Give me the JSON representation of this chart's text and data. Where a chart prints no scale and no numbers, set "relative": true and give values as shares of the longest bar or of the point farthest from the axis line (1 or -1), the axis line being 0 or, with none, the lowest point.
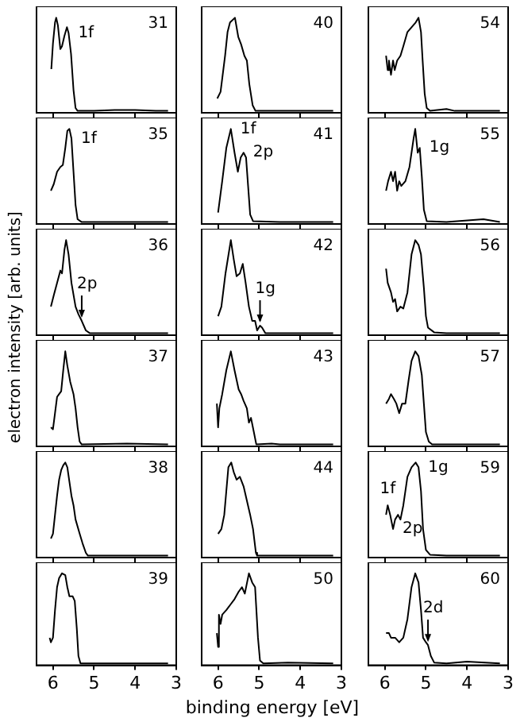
{
  "chart_data": [
    {
      "type": "line",
      "relative": true,
      "xlim": [
        6.4,
        3
      ],
      "xticks": [
        6,
        5,
        4,
        3
      ],
      "tick_labels": false,
      "marker": "none",
      "annotations": [
        "31",
        {
          "text": "1f",
          "x": 5.62,
          "y": 0.84
        }
      ],
      "x": [
        6.04,
        6.0,
        5.95,
        5.92,
        5.88,
        5.82,
        5.78,
        5.72,
        5.66,
        5.62,
        5.56,
        5.5,
        5.45,
        5.4,
        5.0,
        4.5,
        4.0,
        3.5,
        3.2
      ],
      "series": [
        {
          "color": "#000000",
          "values": [
            0.46,
            0.73,
            0.95,
            1.0,
            0.92,
            0.67,
            0.7,
            0.81,
            0.9,
            0.84,
            0.62,
            0.24,
            0.05,
            0.02,
            0.02,
            0.03,
            0.03,
            0.02,
            0.02
          ]
        }
      ]
    },
    {
      "type": "line",
      "relative": true,
      "xlim": [
        6.4,
        3
      ],
      "xticks": [
        6,
        5,
        4,
        3
      ],
      "tick_labels": false,
      "marker": "none",
      "annotations": [
        "40"
      ],
      "x": [
        6.02,
        5.94,
        5.83,
        5.77,
        5.71,
        5.59,
        5.51,
        5.44,
        5.36,
        5.3,
        5.24,
        5.16,
        5.09,
        4.6,
        3.2
      ],
      "series": [
        {
          "color": "#000000",
          "values": [
            0.15,
            0.22,
            0.6,
            0.85,
            0.95,
            1.0,
            0.8,
            0.72,
            0.6,
            0.55,
            0.3,
            0.08,
            0.02,
            0.02,
            0.02
          ]
        }
      ]
    },
    {
      "type": "line",
      "relative": true,
      "xlim": [
        6.4,
        3
      ],
      "xticks": [
        6,
        5,
        4,
        3
      ],
      "tick_labels": false,
      "marker": "none",
      "annotations": [
        "54"
      ],
      "x": [
        5.97,
        5.93,
        5.9,
        5.85,
        5.8,
        5.76,
        5.7,
        5.62,
        5.55,
        5.45,
        5.35,
        5.25,
        5.18,
        5.12,
        5.08,
        5.03,
        4.98,
        4.9,
        4.5,
        4.3,
        3.2
      ],
      "series": [
        {
          "color": "#000000",
          "values": [
            0.6,
            0.45,
            0.55,
            0.4,
            0.55,
            0.45,
            0.55,
            0.6,
            0.7,
            0.85,
            0.9,
            0.95,
            1.0,
            0.85,
            0.55,
            0.2,
            0.05,
            0.02,
            0.04,
            0.02,
            0.02
          ]
        }
      ]
    },
    {
      "type": "line",
      "relative": true,
      "xlim": [
        6.4,
        3
      ],
      "xticks": [
        6,
        5,
        4,
        3
      ],
      "tick_labels": false,
      "marker": "none",
      "annotations": [
        "35",
        {
          "text": "1f",
          "x": 5.55,
          "y": 0.9
        }
      ],
      "x": [
        6.05,
        5.98,
        5.9,
        5.82,
        5.76,
        5.7,
        5.65,
        5.6,
        5.55,
        5.5,
        5.45,
        5.4,
        5.3,
        4.5,
        3.2
      ],
      "series": [
        {
          "color": "#000000",
          "values": [
            0.35,
            0.42,
            0.55,
            0.6,
            0.62,
            0.8,
            0.98,
            1.0,
            0.9,
            0.55,
            0.2,
            0.05,
            0.02,
            0.02,
            0.02
          ]
        }
      ]
    },
    {
      "type": "line",
      "relative": true,
      "xlim": [
        6.4,
        3
      ],
      "xticks": [
        6,
        5,
        4,
        3
      ],
      "tick_labels": false,
      "marker": "none",
      "annotations": [
        "41",
        {
          "text": "1f",
          "x": 5.69,
          "y": 1.0
        },
        {
          "text": "2p",
          "x": 5.38,
          "y": 0.75
        }
      ],
      "x": [
        6.0,
        5.9,
        5.8,
        5.69,
        5.6,
        5.52,
        5.45,
        5.38,
        5.32,
        5.27,
        5.22,
        5.15,
        4.5,
        3.2
      ],
      "series": [
        {
          "color": "#000000",
          "values": [
            0.12,
            0.45,
            0.8,
            1.0,
            0.75,
            0.55,
            0.7,
            0.75,
            0.7,
            0.4,
            0.1,
            0.03,
            0.02,
            0.02
          ]
        }
      ]
    },
    {
      "type": "line",
      "relative": true,
      "xlim": [
        6.4,
        3
      ],
      "xticks": [
        6,
        5,
        4,
        3
      ],
      "tick_labels": false,
      "marker": "none",
      "annotations": [
        "55",
        {
          "text": "1g",
          "x": 5.15,
          "y": 0.8
        }
      ],
      "x": [
        5.97,
        5.92,
        5.85,
        5.8,
        5.75,
        5.7,
        5.65,
        5.6,
        5.5,
        5.4,
        5.3,
        5.26,
        5.2,
        5.15,
        5.1,
        5.05,
        4.98,
        4.5,
        3.6,
        3.2
      ],
      "series": [
        {
          "color": "#000000",
          "values": [
            0.35,
            0.45,
            0.55,
            0.45,
            0.55,
            0.35,
            0.45,
            0.4,
            0.45,
            0.6,
            0.9,
            1.0,
            0.75,
            0.8,
            0.5,
            0.15,
            0.03,
            0.02,
            0.05,
            0.02
          ]
        }
      ]
    },
    {
      "type": "line",
      "ylabel": "electron intensity [arb. units]",
      "relative": true,
      "xlim": [
        6.4,
        3
      ],
      "xticks": [
        6,
        5,
        4,
        3
      ],
      "tick_labels": false,
      "marker": "none",
      "annotations": [
        "36",
        {
          "text": "2p",
          "x": 5.3,
          "y": 0.15
        }
      ],
      "x": [
        6.05,
        5.98,
        5.9,
        5.82,
        5.78,
        5.72,
        5.68,
        5.62,
        5.55,
        5.45,
        5.38,
        5.3,
        5.2,
        5.1,
        4.5,
        3.2
      ],
      "series": [
        {
          "color": "#000000",
          "values": [
            0.3,
            0.42,
            0.55,
            0.68,
            0.65,
            0.9,
            1.0,
            0.85,
            0.55,
            0.3,
            0.22,
            0.15,
            0.05,
            0.02,
            0.02,
            0.02
          ]
        }
      ]
    },
    {
      "type": "line",
      "relative": true,
      "xlim": [
        6.4,
        3
      ],
      "xticks": [
        6,
        5,
        4,
        3
      ],
      "tick_labels": false,
      "marker": "none",
      "annotations": [
        "42",
        {
          "text": "1g",
          "x": 4.98,
          "y": 0.1
        }
      ],
      "x": [
        6.0,
        5.92,
        5.82,
        5.69,
        5.62,
        5.55,
        5.47,
        5.4,
        5.33,
        5.25,
        5.17,
        5.1,
        5.05,
        4.98,
        4.93,
        4.85,
        4.5,
        3.2
      ],
      "series": [
        {
          "color": "#000000",
          "values": [
            0.2,
            0.3,
            0.65,
            1.0,
            0.8,
            0.62,
            0.65,
            0.75,
            0.55,
            0.3,
            0.15,
            0.15,
            0.05,
            0.1,
            0.08,
            0.02,
            0.02,
            0.02
          ]
        }
      ]
    },
    {
      "type": "line",
      "relative": true,
      "xlim": [
        6.4,
        3
      ],
      "xticks": [
        6,
        5,
        4,
        3
      ],
      "tick_labels": false,
      "marker": "none",
      "annotations": [
        "56"
      ],
      "x": [
        5.97,
        5.93,
        5.85,
        5.8,
        5.75,
        5.7,
        5.62,
        5.55,
        5.45,
        5.35,
        5.26,
        5.18,
        5.12,
        5.05,
        5.0,
        4.95,
        4.8,
        4.5,
        3.2
      ],
      "series": [
        {
          "color": "#000000",
          "values": [
            0.7,
            0.55,
            0.45,
            0.35,
            0.38,
            0.25,
            0.3,
            0.28,
            0.45,
            0.85,
            1.0,
            0.95,
            0.85,
            0.5,
            0.2,
            0.08,
            0.03,
            0.02,
            0.02
          ]
        }
      ]
    },
    {
      "type": "line",
      "relative": true,
      "xlim": [
        6.4,
        3
      ],
      "xticks": [
        6,
        5,
        4,
        3
      ],
      "tick_labels": false,
      "marker": "none",
      "annotations": [
        "37"
      ],
      "x": [
        6.05,
        6.0,
        5.95,
        5.9,
        5.85,
        5.8,
        5.75,
        5.7,
        5.65,
        5.58,
        5.5,
        5.45,
        5.4,
        5.35,
        5.3,
        4.2,
        3.2
      ],
      "series": [
        {
          "color": "#000000",
          "values": [
            0.2,
            0.18,
            0.35,
            0.52,
            0.55,
            0.58,
            0.8,
            1.0,
            0.85,
            0.68,
            0.55,
            0.4,
            0.2,
            0.05,
            0.02,
            0.03,
            0.02
          ]
        }
      ]
    },
    {
      "type": "line",
      "relative": true,
      "xlim": [
        6.4,
        3
      ],
      "xticks": [
        6,
        5,
        4,
        3
      ],
      "tick_labels": false,
      "marker": "none",
      "annotations": [
        "43"
      ],
      "x": [
        6.03,
        6.0,
        5.97,
        5.9,
        5.8,
        5.69,
        5.6,
        5.5,
        5.44,
        5.38,
        5.3,
        5.25,
        5.2,
        5.13,
        5.07,
        4.7,
        4.5,
        3.2
      ],
      "series": [
        {
          "color": "#000000",
          "values": [
            0.45,
            0.2,
            0.4,
            0.55,
            0.8,
            1.0,
            0.8,
            0.6,
            0.55,
            0.48,
            0.4,
            0.25,
            0.3,
            0.15,
            0.02,
            0.03,
            0.02,
            0.02
          ]
        }
      ]
    },
    {
      "type": "line",
      "relative": true,
      "xlim": [
        6.4,
        3
      ],
      "xticks": [
        6,
        5,
        4,
        3
      ],
      "tick_labels": false,
      "marker": "none",
      "annotations": [
        "57"
      ],
      "x": [
        5.97,
        5.9,
        5.85,
        5.78,
        5.72,
        5.65,
        5.58,
        5.5,
        5.42,
        5.35,
        5.26,
        5.18,
        5.1,
        5.05,
        5.0,
        4.93,
        4.85,
        3.2
      ],
      "series": [
        {
          "color": "#000000",
          "values": [
            0.45,
            0.5,
            0.55,
            0.5,
            0.45,
            0.35,
            0.45,
            0.45,
            0.7,
            0.9,
            1.0,
            0.95,
            0.75,
            0.45,
            0.15,
            0.05,
            0.02,
            0.02
          ]
        }
      ]
    },
    {
      "type": "line",
      "relative": true,
      "xlim": [
        6.4,
        3
      ],
      "xticks": [
        6,
        5,
        4,
        3
      ],
      "tick_labels": false,
      "marker": "none",
      "annotations": [
        "38"
      ],
      "x": [
        6.05,
        6.0,
        5.95,
        5.9,
        5.85,
        5.8,
        5.75,
        5.7,
        5.65,
        5.6,
        5.55,
        5.5,
        5.45,
        5.35,
        5.28,
        5.2,
        5.15,
        4.5,
        3.2
      ],
      "series": [
        {
          "color": "#000000",
          "values": [
            0.2,
            0.25,
            0.45,
            0.65,
            0.82,
            0.92,
            0.97,
            1.0,
            0.95,
            0.8,
            0.65,
            0.55,
            0.4,
            0.25,
            0.15,
            0.05,
            0.02,
            0.02,
            0.02
          ]
        }
      ]
    },
    {
      "type": "line",
      "relative": true,
      "xlim": [
        6.4,
        3
      ],
      "xticks": [
        6,
        5,
        4,
        3
      ],
      "tick_labels": false,
      "marker": "none",
      "annotations": [
        "44"
      ],
      "x": [
        6.0,
        5.92,
        5.85,
        5.8,
        5.75,
        5.68,
        5.62,
        5.55,
        5.47,
        5.38,
        5.3,
        5.22,
        5.15,
        5.08,
        5.05,
        4.5,
        3.2
      ],
      "series": [
        {
          "color": "#000000",
          "values": [
            0.25,
            0.3,
            0.45,
            0.7,
            0.95,
            1.0,
            0.9,
            0.82,
            0.85,
            0.75,
            0.6,
            0.45,
            0.3,
            0.05,
            0.02,
            0.02,
            0.02
          ]
        }
      ]
    },
    {
      "type": "line",
      "relative": true,
      "xlim": [
        6.4,
        3
      ],
      "xticks": [
        6,
        5,
        4,
        3
      ],
      "tick_labels": false,
      "marker": "none",
      "annotations": [
        "59",
        {
          "text": "1f",
          "x": 5.93,
          "y": 0.55
        },
        {
          "text": "2p",
          "x": 5.8,
          "y": 0.3
        },
        {
          "text": "1g",
          "x": 5.18,
          "y": 0.95
        }
      ],
      "x": [
        5.97,
        5.93,
        5.87,
        5.8,
        5.75,
        5.68,
        5.62,
        5.55,
        5.45,
        5.35,
        5.25,
        5.18,
        5.12,
        5.07,
        5.0,
        4.9,
        4.5,
        3.2
      ],
      "series": [
        {
          "color": "#000000",
          "values": [
            0.45,
            0.55,
            0.45,
            0.3,
            0.4,
            0.45,
            0.4,
            0.55,
            0.85,
            0.95,
            1.0,
            0.95,
            0.7,
            0.3,
            0.08,
            0.03,
            0.02,
            0.02
          ]
        }
      ]
    },
    {
      "type": "line",
      "relative": true,
      "xlim": [
        6.4,
        3
      ],
      "xticks": [
        6,
        5,
        4,
        3
      ],
      "tick_labels": "x",
      "marker": "none",
      "annotations": [
        "39"
      ],
      "x": [
        6.08,
        6.05,
        6.0,
        5.95,
        5.9,
        5.85,
        5.78,
        5.7,
        5.65,
        5.6,
        5.52,
        5.47,
        5.42,
        5.38,
        5.33,
        4.5,
        3.2
      ],
      "series": [
        {
          "color": "#000000",
          "values": [
            0.3,
            0.25,
            0.3,
            0.6,
            0.85,
            0.95,
            1.0,
            0.98,
            0.85,
            0.75,
            0.75,
            0.7,
            0.4,
            0.1,
            0.02,
            0.02,
            0.02
          ]
        }
      ]
    },
    {
      "type": "line",
      "xlabel": "binding energy [eV]",
      "relative": true,
      "xlim": [
        6.4,
        3
      ],
      "xticks": [
        6,
        5,
        4,
        3
      ],
      "tick_labels": "x",
      "marker": "none",
      "annotations": [
        "50"
      ],
      "x": [
        6.03,
        6.0,
        5.98,
        5.94,
        5.9,
        5.8,
        5.7,
        5.6,
        5.5,
        5.42,
        5.35,
        5.25,
        5.17,
        5.1,
        5.03,
        4.98,
        4.9,
        4.3,
        3.2
      ],
      "series": [
        {
          "color": "#000000",
          "values": [
            0.35,
            0.2,
            0.55,
            0.45,
            0.55,
            0.6,
            0.66,
            0.72,
            0.8,
            0.85,
            0.78,
            1.0,
            0.9,
            0.85,
            0.3,
            0.05,
            0.02,
            0.03,
            0.02
          ]
        }
      ]
    },
    {
      "type": "line",
      "relative": true,
      "xlim": [
        6.4,
        3
      ],
      "xticks": [
        6,
        5,
        4,
        3
      ],
      "tick_labels": "x",
      "marker": "none",
      "annotations": [
        "60",
        {
          "text": "2d",
          "x": 4.95,
          "y": 0.22
        }
      ],
      "x": [
        5.97,
        5.9,
        5.85,
        5.75,
        5.65,
        5.55,
        5.45,
        5.35,
        5.26,
        5.18,
        5.12,
        5.07,
        5.0,
        4.95,
        4.88,
        4.8,
        4.5,
        4.0,
        3.2
      ],
      "series": [
        {
          "color": "#000000",
          "values": [
            0.35,
            0.35,
            0.3,
            0.3,
            0.25,
            0.3,
            0.5,
            0.85,
            1.0,
            0.9,
            0.6,
            0.3,
            0.25,
            0.22,
            0.1,
            0.03,
            0.02,
            0.04,
            0.02
          ]
        }
      ]
    }
  ]
}
